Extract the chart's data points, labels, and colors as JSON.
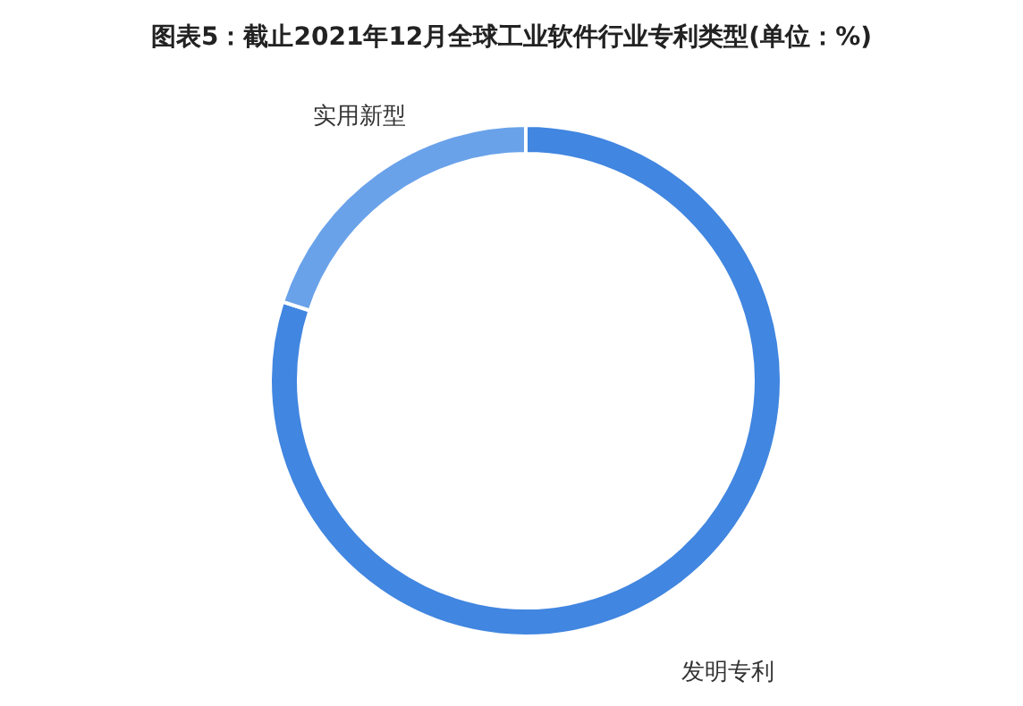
{
  "chart_data": {
    "type": "donut",
    "title": "图表5：截止2021年12月全球工业软件行业专利类型(单位：%)",
    "categories": [
      "发明专利",
      "实用新型"
    ],
    "values": [
      80,
      20
    ],
    "colors": [
      "#4186e0",
      "#6aa2ea"
    ],
    "legend": false
  }
}
